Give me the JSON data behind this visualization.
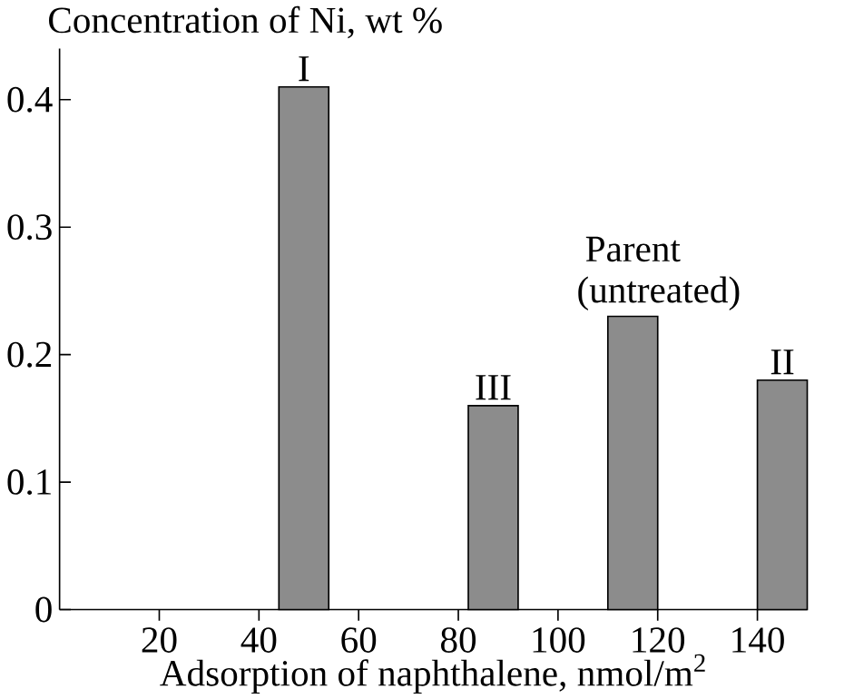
{
  "chart_data": {
    "type": "bar",
    "x": [
      49,
      87,
      115,
      145
    ],
    "values": [
      0.41,
      0.16,
      0.23,
      0.18
    ],
    "color": "#8c8c8c",
    "xlabel": "Adsorption of naphthalene, nmol/m$^{2}$",
    "ylabel": "Concentration of Ni, wt %",
    "xlim": [
      0,
      150
    ],
    "ylim": [
      0,
      0.44
    ],
    "xticks": [
      20,
      40,
      60,
      80,
      100,
      120,
      140
    ],
    "yticks": [
      0,
      0.1,
      0.2,
      0.3,
      0.4
    ],
    "annotations": [
      {
        "text": "I",
        "x": 49,
        "y": 0.41
      },
      {
        "text": "III",
        "x": 87,
        "y": 0.16
      },
      {
        "text": "Parent (untreated)",
        "x": 115,
        "y": 0.23
      },
      {
        "text": "II",
        "x": 145,
        "y": 0.18
      }
    ]
  }
}
